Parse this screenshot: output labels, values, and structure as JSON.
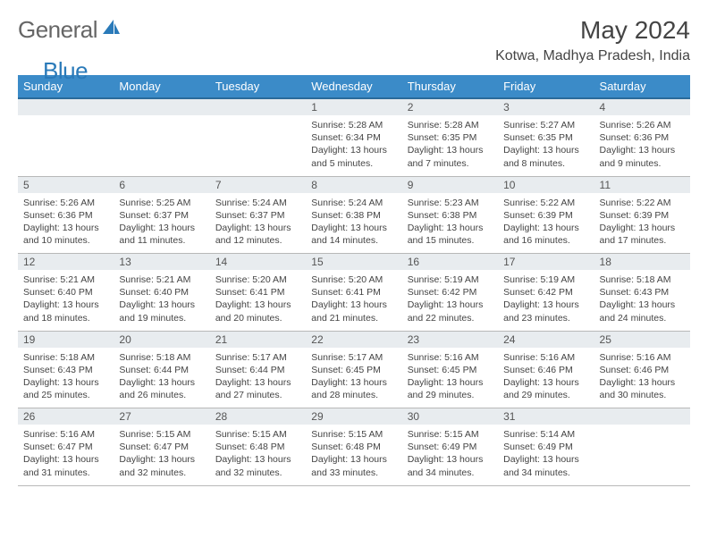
{
  "brand": {
    "text1": "General",
    "text2": "Blue",
    "color1": "#666666",
    "color2": "#2a7ab9"
  },
  "header": {
    "title": "May 2024",
    "location": "Kotwa, Madhya Pradesh, India"
  },
  "theme": {
    "header_bg": "#3b8bc8",
    "header_text": "#ffffff",
    "daynum_bg": "#e8ecef",
    "row_border": "#b8b8b8"
  },
  "daynames": [
    "Sunday",
    "Monday",
    "Tuesday",
    "Wednesday",
    "Thursday",
    "Friday",
    "Saturday"
  ],
  "weeks": [
    {
      "nums": [
        "",
        "",
        "",
        "1",
        "2",
        "3",
        "4"
      ],
      "cells": [
        null,
        null,
        null,
        {
          "sr": "Sunrise: 5:28 AM",
          "ss": "Sunset: 6:34 PM",
          "dl": "Daylight: 13 hours and 5 minutes."
        },
        {
          "sr": "Sunrise: 5:28 AM",
          "ss": "Sunset: 6:35 PM",
          "dl": "Daylight: 13 hours and 7 minutes."
        },
        {
          "sr": "Sunrise: 5:27 AM",
          "ss": "Sunset: 6:35 PM",
          "dl": "Daylight: 13 hours and 8 minutes."
        },
        {
          "sr": "Sunrise: 5:26 AM",
          "ss": "Sunset: 6:36 PM",
          "dl": "Daylight: 13 hours and 9 minutes."
        }
      ]
    },
    {
      "nums": [
        "5",
        "6",
        "7",
        "8",
        "9",
        "10",
        "11"
      ],
      "cells": [
        {
          "sr": "Sunrise: 5:26 AM",
          "ss": "Sunset: 6:36 PM",
          "dl": "Daylight: 13 hours and 10 minutes."
        },
        {
          "sr": "Sunrise: 5:25 AM",
          "ss": "Sunset: 6:37 PM",
          "dl": "Daylight: 13 hours and 11 minutes."
        },
        {
          "sr": "Sunrise: 5:24 AM",
          "ss": "Sunset: 6:37 PM",
          "dl": "Daylight: 13 hours and 12 minutes."
        },
        {
          "sr": "Sunrise: 5:24 AM",
          "ss": "Sunset: 6:38 PM",
          "dl": "Daylight: 13 hours and 14 minutes."
        },
        {
          "sr": "Sunrise: 5:23 AM",
          "ss": "Sunset: 6:38 PM",
          "dl": "Daylight: 13 hours and 15 minutes."
        },
        {
          "sr": "Sunrise: 5:22 AM",
          "ss": "Sunset: 6:39 PM",
          "dl": "Daylight: 13 hours and 16 minutes."
        },
        {
          "sr": "Sunrise: 5:22 AM",
          "ss": "Sunset: 6:39 PM",
          "dl": "Daylight: 13 hours and 17 minutes."
        }
      ]
    },
    {
      "nums": [
        "12",
        "13",
        "14",
        "15",
        "16",
        "17",
        "18"
      ],
      "cells": [
        {
          "sr": "Sunrise: 5:21 AM",
          "ss": "Sunset: 6:40 PM",
          "dl": "Daylight: 13 hours and 18 minutes."
        },
        {
          "sr": "Sunrise: 5:21 AM",
          "ss": "Sunset: 6:40 PM",
          "dl": "Daylight: 13 hours and 19 minutes."
        },
        {
          "sr": "Sunrise: 5:20 AM",
          "ss": "Sunset: 6:41 PM",
          "dl": "Daylight: 13 hours and 20 minutes."
        },
        {
          "sr": "Sunrise: 5:20 AM",
          "ss": "Sunset: 6:41 PM",
          "dl": "Daylight: 13 hours and 21 minutes."
        },
        {
          "sr": "Sunrise: 5:19 AM",
          "ss": "Sunset: 6:42 PM",
          "dl": "Daylight: 13 hours and 22 minutes."
        },
        {
          "sr": "Sunrise: 5:19 AM",
          "ss": "Sunset: 6:42 PM",
          "dl": "Daylight: 13 hours and 23 minutes."
        },
        {
          "sr": "Sunrise: 5:18 AM",
          "ss": "Sunset: 6:43 PM",
          "dl": "Daylight: 13 hours and 24 minutes."
        }
      ]
    },
    {
      "nums": [
        "19",
        "20",
        "21",
        "22",
        "23",
        "24",
        "25"
      ],
      "cells": [
        {
          "sr": "Sunrise: 5:18 AM",
          "ss": "Sunset: 6:43 PM",
          "dl": "Daylight: 13 hours and 25 minutes."
        },
        {
          "sr": "Sunrise: 5:18 AM",
          "ss": "Sunset: 6:44 PM",
          "dl": "Daylight: 13 hours and 26 minutes."
        },
        {
          "sr": "Sunrise: 5:17 AM",
          "ss": "Sunset: 6:44 PM",
          "dl": "Daylight: 13 hours and 27 minutes."
        },
        {
          "sr": "Sunrise: 5:17 AM",
          "ss": "Sunset: 6:45 PM",
          "dl": "Daylight: 13 hours and 28 minutes."
        },
        {
          "sr": "Sunrise: 5:16 AM",
          "ss": "Sunset: 6:45 PM",
          "dl": "Daylight: 13 hours and 29 minutes."
        },
        {
          "sr": "Sunrise: 5:16 AM",
          "ss": "Sunset: 6:46 PM",
          "dl": "Daylight: 13 hours and 29 minutes."
        },
        {
          "sr": "Sunrise: 5:16 AM",
          "ss": "Sunset: 6:46 PM",
          "dl": "Daylight: 13 hours and 30 minutes."
        }
      ]
    },
    {
      "nums": [
        "26",
        "27",
        "28",
        "29",
        "30",
        "31",
        ""
      ],
      "cells": [
        {
          "sr": "Sunrise: 5:16 AM",
          "ss": "Sunset: 6:47 PM",
          "dl": "Daylight: 13 hours and 31 minutes."
        },
        {
          "sr": "Sunrise: 5:15 AM",
          "ss": "Sunset: 6:47 PM",
          "dl": "Daylight: 13 hours and 32 minutes."
        },
        {
          "sr": "Sunrise: 5:15 AM",
          "ss": "Sunset: 6:48 PM",
          "dl": "Daylight: 13 hours and 32 minutes."
        },
        {
          "sr": "Sunrise: 5:15 AM",
          "ss": "Sunset: 6:48 PM",
          "dl": "Daylight: 13 hours and 33 minutes."
        },
        {
          "sr": "Sunrise: 5:15 AM",
          "ss": "Sunset: 6:49 PM",
          "dl": "Daylight: 13 hours and 34 minutes."
        },
        {
          "sr": "Sunrise: 5:14 AM",
          "ss": "Sunset: 6:49 PM",
          "dl": "Daylight: 13 hours and 34 minutes."
        },
        null
      ]
    }
  ]
}
